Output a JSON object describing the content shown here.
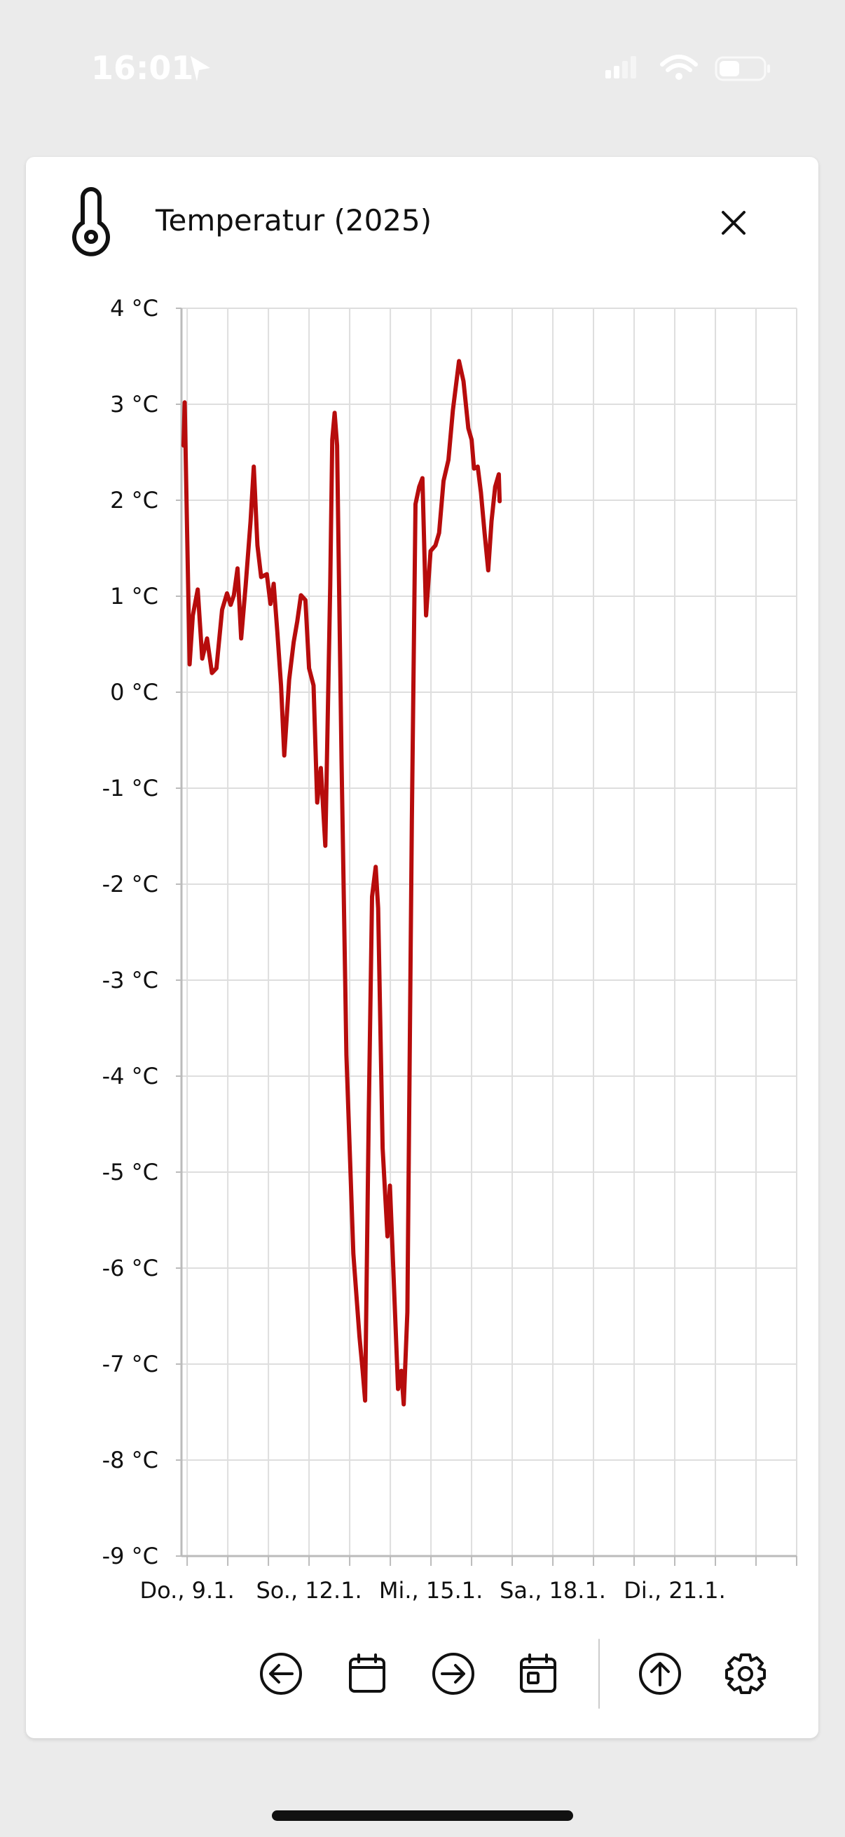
{
  "status_bar": {
    "time": "16:01"
  },
  "dialog": {
    "title": "Temperatur (2025)"
  },
  "chart_data": {
    "type": "line",
    "x": [
      8.91,
      8.94,
      9.06,
      9.14,
      9.26,
      9.37,
      9.49,
      9.61,
      9.72,
      9.86,
      9.98,
      10.07,
      10.15,
      10.24,
      10.33,
      10.44,
      10.56,
      10.64,
      10.73,
      10.82,
      10.96,
      11.05,
      11.13,
      11.22,
      11.31,
      11.39,
      11.51,
      11.62,
      11.71,
      11.8,
      11.91,
      12.0,
      12.11,
      12.2,
      12.29,
      12.4,
      12.52,
      12.57,
      12.63,
      12.69,
      12.8,
      12.92,
      13.09,
      13.24,
      13.32,
      13.38,
      13.47,
      13.55,
      13.64,
      13.7,
      13.81,
      13.93,
      13.99,
      14.07,
      14.19,
      14.27,
      14.33,
      14.42,
      14.53,
      14.62,
      14.71,
      14.79,
      14.88,
      14.99,
      15.11,
      15.2,
      15.31,
      15.43,
      15.54,
      15.69,
      15.8,
      15.92,
      16.0,
      16.06,
      16.15,
      16.23,
      16.32,
      16.41,
      16.49,
      16.58,
      16.67,
      16.69
    ],
    "values": [
      2.57,
      3.02,
      0.29,
      0.8,
      1.07,
      0.35,
      0.56,
      0.2,
      0.25,
      0.86,
      1.03,
      0.91,
      1.01,
      1.29,
      0.56,
      1.11,
      1.78,
      2.35,
      1.53,
      1.2,
      1.23,
      0.92,
      1.13,
      0.62,
      0.07,
      -0.66,
      0.13,
      0.52,
      0.74,
      1.01,
      0.96,
      0.25,
      0.07,
      -1.15,
      -0.79,
      -1.6,
      1.11,
      2.63,
      2.91,
      2.57,
      -0.73,
      -3.78,
      -5.85,
      -6.71,
      -7.07,
      -7.38,
      -4.39,
      -2.13,
      -1.82,
      -2.25,
      -4.75,
      -5.67,
      -5.14,
      -5.97,
      -7.26,
      -7.07,
      -7.42,
      -6.46,
      -1.34,
      1.96,
      2.14,
      2.23,
      0.8,
      1.47,
      1.53,
      1.66,
      2.2,
      2.42,
      2.94,
      3.45,
      3.24,
      2.75,
      2.63,
      2.33,
      2.35,
      2.08,
      1.66,
      1.27,
      1.78,
      2.14,
      2.27,
      1.99
    ],
    "color": "#b70c0c",
    "xlim": [
      8.86,
      24
    ],
    "ylim": [
      -9,
      4
    ],
    "xticks": [
      {
        "value": 9,
        "label": "Do., 9.1."
      },
      {
        "value": 12,
        "label": "So., 12.1."
      },
      {
        "value": 15,
        "label": "Mi., 15.1."
      },
      {
        "value": 18,
        "label": "Sa., 18.1."
      },
      {
        "value": 21,
        "label": "Di., 21.1."
      }
    ],
    "xminor_ticks": [
      10,
      11,
      13,
      14,
      16,
      17,
      19,
      20,
      22,
      23,
      24
    ],
    "yticks": [
      {
        "value": 4,
        "label": "4 °C"
      },
      {
        "value": 3,
        "label": "3 °C"
      },
      {
        "value": 2,
        "label": "2 °C"
      },
      {
        "value": 1,
        "label": "1 °C"
      },
      {
        "value": 0,
        "label": "0 °C"
      },
      {
        "value": -1,
        "label": "-1 °C"
      },
      {
        "value": -2,
        "label": "-2 °C"
      },
      {
        "value": -3,
        "label": "-3 °C"
      },
      {
        "value": -4,
        "label": "-4 °C"
      },
      {
        "value": -5,
        "label": "-5 °C"
      },
      {
        "value": -6,
        "label": "-6 °C"
      },
      {
        "value": -7,
        "label": "-7 °C"
      },
      {
        "value": -8,
        "label": "-8 °C"
      },
      {
        "value": -9,
        "label": "-9 °C"
      }
    ],
    "grid": true
  }
}
